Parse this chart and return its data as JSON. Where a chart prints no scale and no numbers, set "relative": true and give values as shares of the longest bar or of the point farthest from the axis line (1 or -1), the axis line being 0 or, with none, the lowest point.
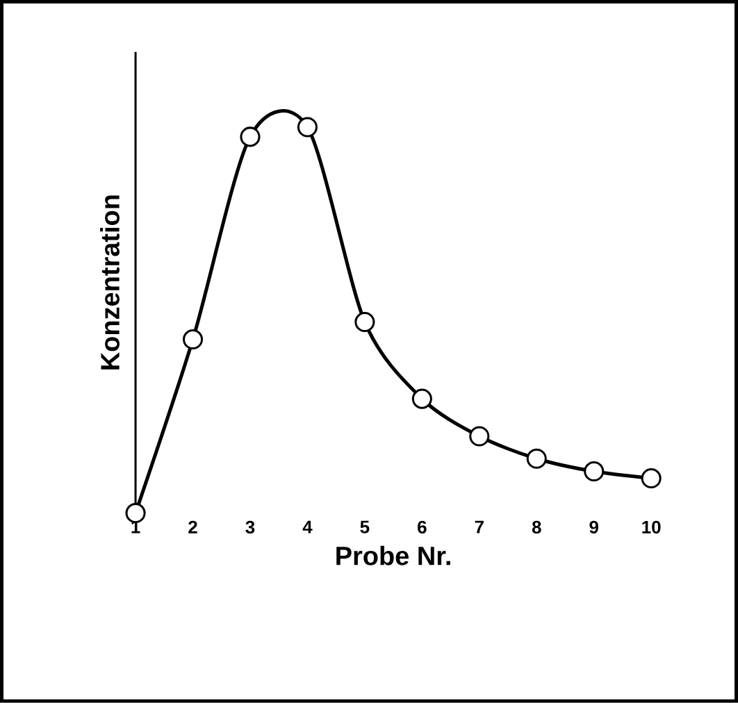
{
  "chart_data": {
    "type": "line",
    "xlabel": "Probe Nr.",
    "ylabel": "Konzentration",
    "relative": true,
    "marker": "circle",
    "line_style": "solid",
    "color": "#000000",
    "x": [
      1,
      2,
      3,
      4,
      5,
      6,
      7,
      8,
      9,
      10
    ],
    "xlim": [
      1,
      10
    ],
    "xticks": [
      1,
      2,
      3,
      4,
      5,
      6,
      7,
      8,
      9,
      10
    ],
    "values": [
      0,
      0.45,
      0.975,
      1,
      0.495,
      0.296,
      0.199,
      0.141,
      0.108,
      0.09
    ]
  }
}
